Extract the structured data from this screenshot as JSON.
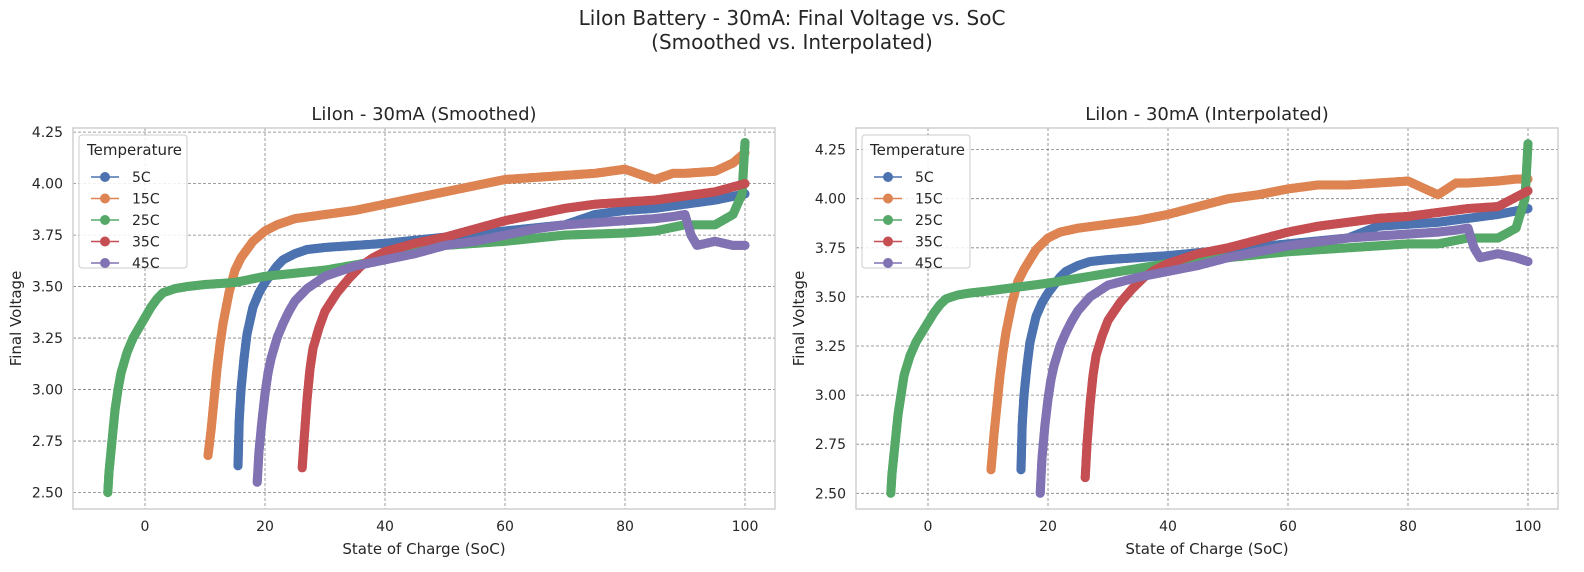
{
  "figure": {
    "title_line1": "LiIon Battery - 30mA: Final Voltage vs. SoC",
    "title_line2": "(Smoothed vs. Interpolated)"
  },
  "colors": {
    "5C": "#4c72b0",
    "15C": "#dd8452",
    "25C": "#55a868",
    "35C": "#c44e52",
    "45C": "#8172b3",
    "grid": "#808080",
    "spine": "#cccccc"
  },
  "chart_data": [
    {
      "type": "scatter",
      "title": "LiIon - 30mA (Smoothed)",
      "xlabel": "State of Charge (SoC)",
      "ylabel": "Final Voltage",
      "xlim": [
        -12,
        105
      ],
      "ylim": [
        2.42,
        4.27
      ],
      "xticks": [
        0,
        20,
        40,
        60,
        80,
        100
      ],
      "yticks": [
        2.5,
        2.75,
        3.0,
        3.25,
        3.5,
        3.75,
        4.0,
        4.25
      ],
      "grid": true,
      "legend": {
        "title": "Temperature",
        "placement": "upper-left",
        "entries": [
          "5C",
          "15C",
          "25C",
          "35C",
          "45C"
        ]
      },
      "series": [
        {
          "name": "5C",
          "x": [
            15.5,
            15.7,
            16,
            16.5,
            17,
            18,
            19,
            20,
            21,
            22,
            23,
            25,
            27,
            30,
            35,
            40,
            50,
            60,
            70,
            75,
            80,
            85,
            90,
            95,
            100
          ],
          "y": [
            2.63,
            2.85,
            3.0,
            3.15,
            3.27,
            3.4,
            3.47,
            3.52,
            3.56,
            3.6,
            3.63,
            3.66,
            3.68,
            3.69,
            3.7,
            3.71,
            3.74,
            3.77,
            3.8,
            3.85,
            3.87,
            3.88,
            3.9,
            3.92,
            3.95
          ]
        },
        {
          "name": "15C",
          "x": [
            10.5,
            11,
            11.5,
            12,
            12.5,
            13,
            14,
            15,
            16,
            18,
            20,
            22,
            25,
            30,
            35,
            40,
            45,
            50,
            55,
            60,
            65,
            70,
            75,
            80,
            85,
            88,
            90,
            95,
            98,
            100
          ],
          "y": [
            2.68,
            2.8,
            2.95,
            3.1,
            3.22,
            3.32,
            3.47,
            3.58,
            3.64,
            3.72,
            3.77,
            3.8,
            3.83,
            3.85,
            3.87,
            3.9,
            3.93,
            3.96,
            3.99,
            4.02,
            4.03,
            4.04,
            4.05,
            4.07,
            4.02,
            4.05,
            4.05,
            4.06,
            4.1,
            4.15
          ]
        },
        {
          "name": "25C",
          "x": [
            -6.2,
            -6,
            -5.5,
            -5,
            -4.5,
            -4,
            -3,
            -2,
            -1,
            0,
            1,
            2,
            3,
            5,
            7,
            10,
            15,
            20,
            30,
            40,
            50,
            60,
            70,
            80,
            85,
            90,
            95,
            98,
            99.5,
            100
          ],
          "y": [
            2.5,
            2.6,
            2.75,
            2.9,
            3.0,
            3.08,
            3.18,
            3.25,
            3.3,
            3.35,
            3.4,
            3.44,
            3.47,
            3.49,
            3.5,
            3.51,
            3.52,
            3.55,
            3.58,
            3.63,
            3.7,
            3.72,
            3.75,
            3.76,
            3.77,
            3.8,
            3.8,
            3.85,
            3.95,
            4.2
          ]
        },
        {
          "name": "35C",
          "x": [
            26.2,
            26.5,
            27,
            27.5,
            28,
            29,
            30,
            32,
            34,
            36,
            38,
            40,
            45,
            50,
            55,
            60,
            65,
            70,
            75,
            80,
            85,
            90,
            95,
            100
          ],
          "y": [
            2.62,
            2.75,
            2.95,
            3.1,
            3.2,
            3.3,
            3.38,
            3.47,
            3.54,
            3.6,
            3.64,
            3.67,
            3.71,
            3.74,
            3.78,
            3.82,
            3.85,
            3.88,
            3.9,
            3.91,
            3.92,
            3.94,
            3.96,
            4.0
          ]
        },
        {
          "name": "45C",
          "x": [
            18.7,
            19,
            19.5,
            20,
            20.5,
            21,
            22,
            23,
            24,
            25,
            27,
            30,
            35,
            40,
            45,
            50,
            55,
            60,
            65,
            70,
            75,
            80,
            85,
            88,
            90,
            91,
            92,
            95,
            98,
            100
          ],
          "y": [
            2.55,
            2.7,
            2.85,
            2.98,
            3.08,
            3.15,
            3.25,
            3.32,
            3.38,
            3.43,
            3.49,
            3.55,
            3.6,
            3.63,
            3.66,
            3.7,
            3.72,
            3.75,
            3.78,
            3.8,
            3.81,
            3.82,
            3.83,
            3.84,
            3.85,
            3.75,
            3.7,
            3.72,
            3.7,
            3.7
          ]
        }
      ]
    },
    {
      "type": "scatter",
      "title": "LiIon - 30mA (Interpolated)",
      "xlabel": "State of Charge (SoC)",
      "ylabel": "Final Voltage",
      "xlim": [
        -12,
        105
      ],
      "ylim": [
        2.42,
        4.36
      ],
      "xticks": [
        0,
        20,
        40,
        60,
        80,
        100
      ],
      "yticks": [
        2.5,
        2.75,
        3.0,
        3.25,
        3.5,
        3.75,
        4.0,
        4.25
      ],
      "grid": true,
      "legend": {
        "title": "Temperature",
        "placement": "upper-left",
        "entries": [
          "5C",
          "15C",
          "25C",
          "35C",
          "45C"
        ]
      },
      "series": [
        {
          "name": "5C",
          "x": [
            15.5,
            15.7,
            16,
            16.5,
            17,
            18,
            19,
            20,
            21,
            22,
            23,
            25,
            27,
            30,
            35,
            40,
            50,
            60,
            70,
            75,
            80,
            85,
            90,
            95,
            100
          ],
          "y": [
            2.62,
            2.85,
            3.0,
            3.15,
            3.27,
            3.4,
            3.47,
            3.52,
            3.56,
            3.6,
            3.63,
            3.66,
            3.68,
            3.69,
            3.7,
            3.71,
            3.74,
            3.77,
            3.8,
            3.86,
            3.87,
            3.88,
            3.9,
            3.92,
            3.95
          ]
        },
        {
          "name": "15C",
          "x": [
            10.5,
            11,
            11.5,
            12,
            12.5,
            13,
            14,
            15,
            16,
            18,
            20,
            22,
            25,
            30,
            35,
            40,
            45,
            50,
            55,
            60,
            65,
            70,
            75,
            80,
            85,
            88,
            90,
            95,
            98,
            100
          ],
          "y": [
            2.62,
            2.8,
            2.95,
            3.1,
            3.22,
            3.32,
            3.47,
            3.58,
            3.64,
            3.74,
            3.8,
            3.83,
            3.85,
            3.87,
            3.89,
            3.92,
            3.96,
            4.0,
            4.02,
            4.05,
            4.07,
            4.07,
            4.08,
            4.09,
            4.02,
            4.08,
            4.08,
            4.09,
            4.1,
            4.1
          ]
        },
        {
          "name": "25C",
          "x": [
            -6.2,
            -6,
            -5.5,
            -5,
            -4.5,
            -4,
            -3,
            -2,
            -1,
            0,
            1,
            2,
            3,
            5,
            7,
            10,
            15,
            20,
            30,
            40,
            50,
            60,
            70,
            80,
            85,
            90,
            95,
            98,
            99.5,
            100
          ],
          "y": [
            2.5,
            2.6,
            2.75,
            2.9,
            3.0,
            3.1,
            3.2,
            3.27,
            3.32,
            3.37,
            3.42,
            3.46,
            3.49,
            3.51,
            3.52,
            3.53,
            3.55,
            3.57,
            3.62,
            3.67,
            3.7,
            3.73,
            3.75,
            3.77,
            3.77,
            3.8,
            3.8,
            3.85,
            4.0,
            4.28
          ]
        },
        {
          "name": "35C",
          "x": [
            26.2,
            26.5,
            27,
            27.5,
            28,
            29,
            30,
            32,
            34,
            36,
            38,
            40,
            45,
            50,
            55,
            60,
            65,
            70,
            75,
            80,
            85,
            90,
            95,
            100
          ],
          "y": [
            2.58,
            2.75,
            2.95,
            3.1,
            3.2,
            3.3,
            3.38,
            3.47,
            3.54,
            3.6,
            3.64,
            3.67,
            3.72,
            3.75,
            3.79,
            3.83,
            3.86,
            3.88,
            3.9,
            3.91,
            3.93,
            3.95,
            3.96,
            4.04
          ]
        },
        {
          "name": "45C",
          "x": [
            18.7,
            19,
            19.5,
            20,
            20.5,
            21,
            22,
            23,
            24,
            25,
            27,
            30,
            35,
            40,
            45,
            50,
            55,
            60,
            65,
            70,
            75,
            80,
            85,
            88,
            90,
            91,
            92,
            95,
            98,
            100
          ],
          "y": [
            2.5,
            2.68,
            2.85,
            2.98,
            3.08,
            3.15,
            3.25,
            3.32,
            3.38,
            3.43,
            3.5,
            3.56,
            3.6,
            3.63,
            3.66,
            3.7,
            3.73,
            3.76,
            3.78,
            3.8,
            3.81,
            3.82,
            3.83,
            3.84,
            3.85,
            3.75,
            3.7,
            3.72,
            3.7,
            3.68
          ]
        }
      ]
    }
  ]
}
